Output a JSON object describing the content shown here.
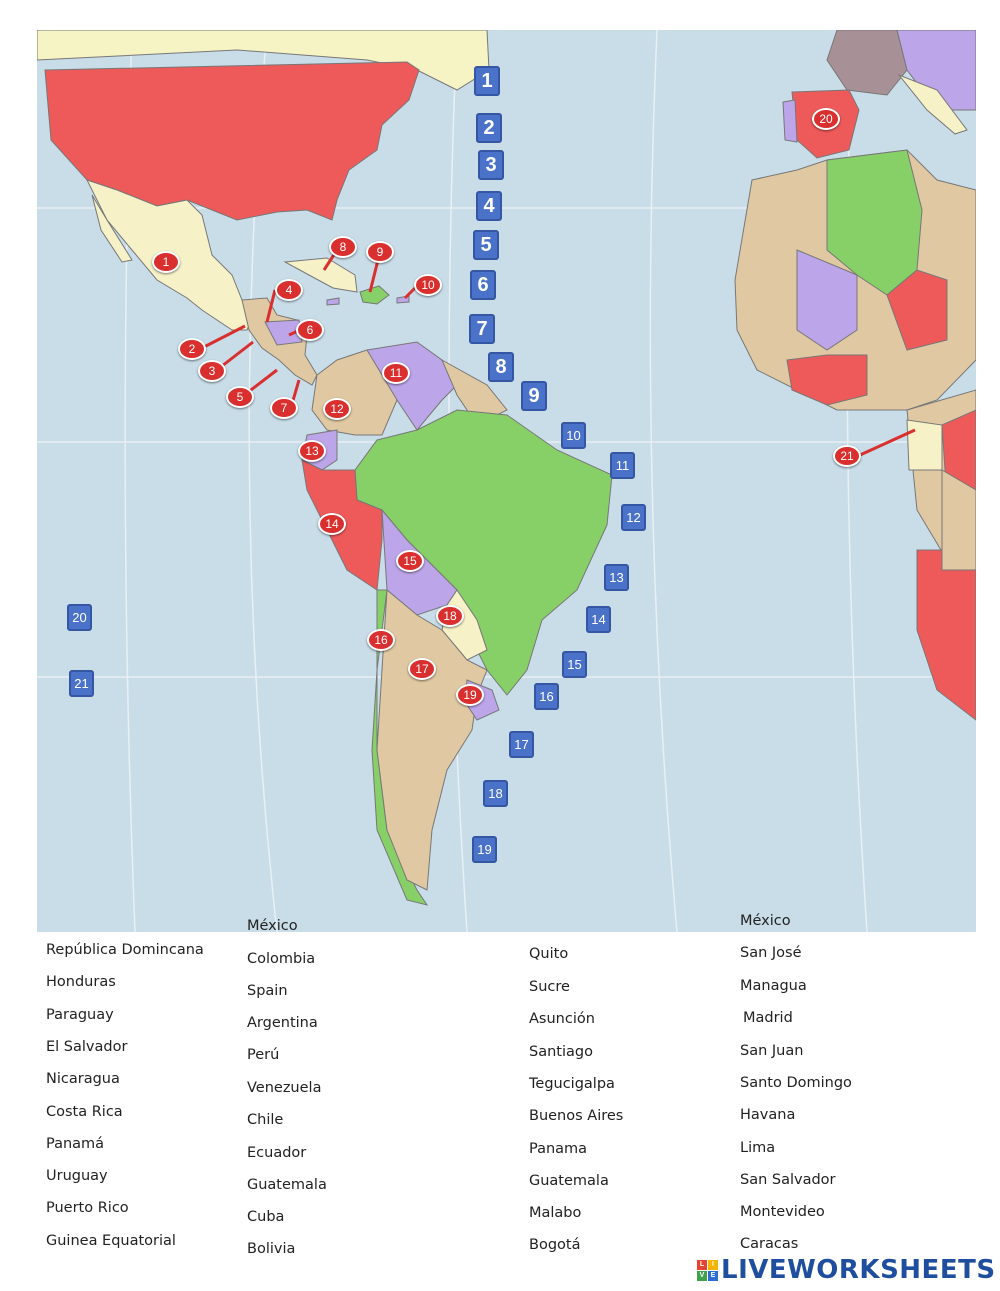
{
  "map": {
    "blue_boxes": [
      "1",
      "2",
      "3",
      "4",
      "5",
      "6",
      "7",
      "8",
      "9",
      "10",
      "11",
      "12",
      "13",
      "14",
      "15",
      "16",
      "17",
      "18",
      "19",
      "20",
      "21"
    ],
    "red_markers": [
      "1",
      "2",
      "3",
      "4",
      "5",
      "6",
      "7",
      "8",
      "9",
      "10",
      "11",
      "12",
      "13",
      "14",
      "15",
      "16",
      "17",
      "18",
      "19",
      "20",
      "21"
    ],
    "colors": {
      "ocean": "#c9dde8",
      "usa": "#ee5a5a",
      "canada": "#f6f4c4",
      "green": "#86d067",
      "purple": "#bca5e8",
      "tan": "#e0c9a2",
      "cream": "#f7f1c8",
      "marker": "#d92f2f",
      "box": "#4a72c8"
    }
  },
  "lists": {
    "countries_a": [
      "República Domincana",
      "Honduras",
      "Paraguay",
      "El Salvador",
      "Nicaragua",
      "Costa Rica",
      "Panamá",
      "Uruguay",
      "Puerto Rico",
      "Guinea Equatorial"
    ],
    "countries_b": [
      "México",
      "Colombia",
      "Spain",
      "Argentina",
      "Perú",
      "Venezuela",
      "Chile",
      "Ecuador",
      "Guatemala",
      "Cuba",
      "Bolivia"
    ],
    "capitals_a": [
      "Quito",
      "Sucre",
      "Asunción",
      "Santiago",
      "Tegucigalpa",
      "Buenos Aires",
      "Panama",
      "Guatemala",
      "Malabo",
      "Bogotá"
    ],
    "capitals_b": [
      "México",
      "San José",
      "Managua",
      "Madrid",
      "San Juan",
      "Santo Domingo",
      "Havana",
      "Lima",
      "San Salvador",
      "Montevideo",
      "Caracas"
    ]
  },
  "logo": {
    "tiles": [
      "L",
      "I",
      "V",
      "E"
    ],
    "text": "LIVEWORKSHEETS"
  }
}
